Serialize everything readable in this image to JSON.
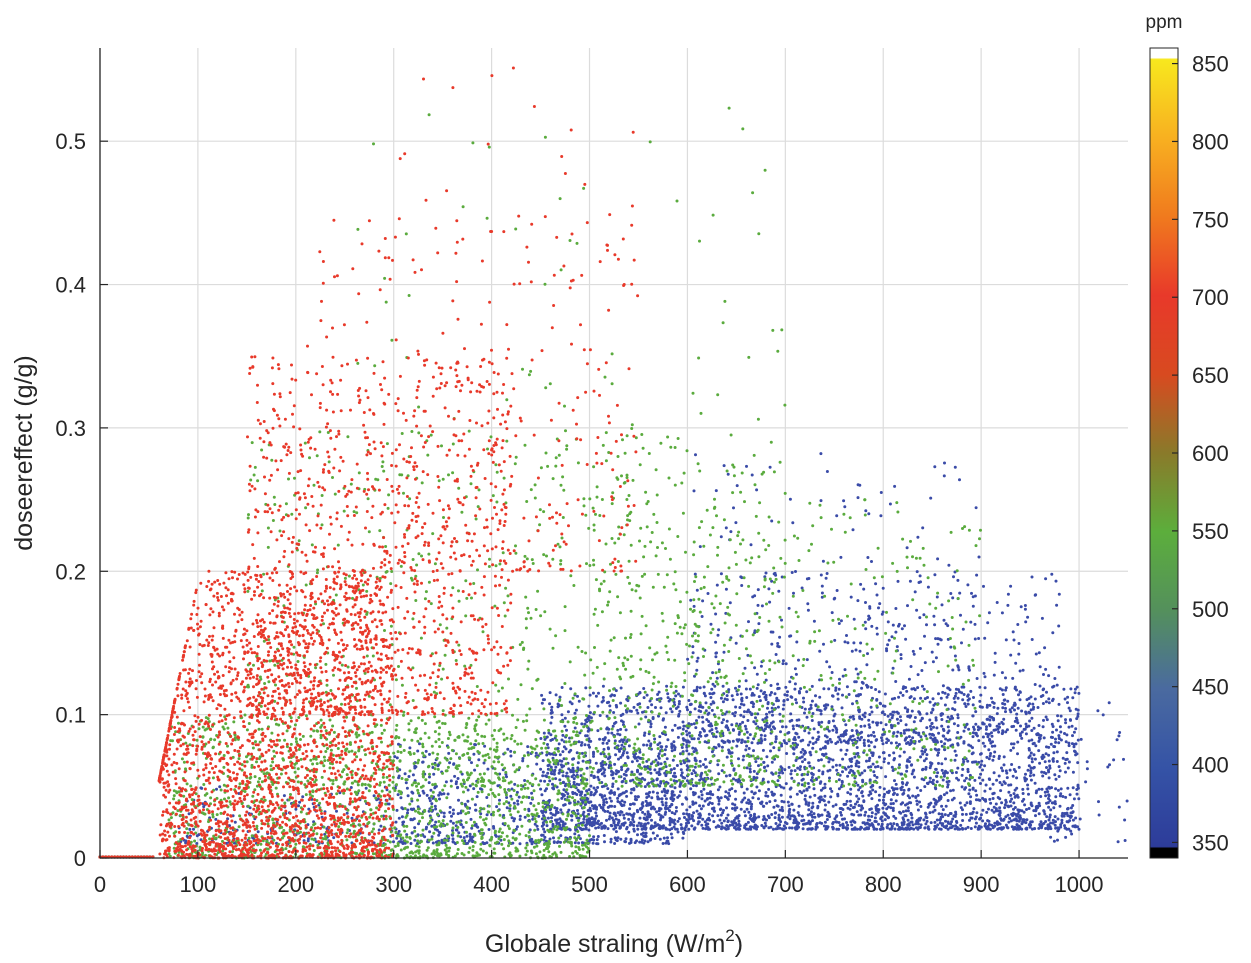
{
  "chart_data": {
    "type": "scatter",
    "xlabel": "Globale straling (W/m",
    "xlabel_sup": "2",
    "xlabel_end": ")",
    "ylabel": "doseereffect (g/g)",
    "xlim": [
      0,
      1050
    ],
    "ylim": [
      0,
      0.565
    ],
    "x_ticks": [
      0,
      100,
      200,
      300,
      400,
      500,
      600,
      700,
      800,
      900,
      1000
    ],
    "x_tick_labels": [
      "0",
      "100",
      "200",
      "300",
      "400",
      "500",
      "600",
      "700",
      "800",
      "900",
      "1000"
    ],
    "y_ticks": [
      0,
      0.1,
      0.2,
      0.3,
      0.4,
      0.5
    ],
    "y_tick_labels": [
      "0",
      "0.1",
      "0.2",
      "0.3",
      "0.4",
      "0.5"
    ],
    "grid": true,
    "colorbar": {
      "unit": "ppm",
      "min": 340,
      "max": 860,
      "ticks": [
        350,
        400,
        450,
        500,
        550,
        600,
        650,
        700,
        750,
        800,
        850
      ],
      "tick_labels": [
        "350",
        "400",
        "450",
        "500",
        "550",
        "600",
        "650",
        "700",
        "750",
        "800",
        "850"
      ],
      "colors": [
        "#000000",
        "#2d3c9a",
        "#3553a6",
        "#4a6aa0",
        "#54905c",
        "#5cae3c",
        "#8a7a2a",
        "#d84a20",
        "#e8392a",
        "#f07a1e",
        "#f8b020",
        "#f8e81e",
        "#ffffff"
      ]
    },
    "series": [
      {
        "ppm": 400,
        "color": "#3a4ba8",
        "clusters": [
          {
            "xmin": 450,
            "xmax": 1000,
            "ymin": 0.02,
            "ymax": 0.12,
            "count": 3200
          },
          {
            "xmin": 300,
            "xmax": 600,
            "ymin": 0.01,
            "ymax": 0.08,
            "count": 700
          },
          {
            "xmin": 600,
            "xmax": 980,
            "ymin": 0.08,
            "ymax": 0.2,
            "count": 500
          },
          {
            "xmin": 600,
            "xmax": 900,
            "ymin": 0.15,
            "ymax": 0.29,
            "count": 110
          },
          {
            "xmin": 80,
            "xmax": 350,
            "ymin": 0.01,
            "ymax": 0.05,
            "count": 220
          },
          {
            "xmin": 950,
            "xmax": 1050,
            "ymin": 0.01,
            "ymax": 0.11,
            "count": 40
          }
        ]
      },
      {
        "ppm": 500,
        "color": "#5aab3e",
        "clusters": [
          {
            "xmin": 70,
            "xmax": 500,
            "ymin": 0.0,
            "ymax": 0.1,
            "count": 1400
          },
          {
            "xmin": 150,
            "xmax": 700,
            "ymin": 0.05,
            "ymax": 0.3,
            "count": 900
          },
          {
            "xmin": 500,
            "xmax": 900,
            "ymin": 0.05,
            "ymax": 0.25,
            "count": 500
          },
          {
            "xmin": 250,
            "xmax": 700,
            "ymin": 0.25,
            "ymax": 0.53,
            "count": 90
          }
        ]
      },
      {
        "ppm": 650,
        "color": "#e8392a",
        "clusters": [
          {
            "xmin": 60,
            "xmax": 300,
            "ymin": 0.0,
            "ymax": 0.2,
            "count": 2300
          },
          {
            "xmin": 150,
            "xmax": 420,
            "ymin": 0.1,
            "ymax": 0.35,
            "count": 1000
          },
          {
            "xmin": 200,
            "xmax": 550,
            "ymin": 0.2,
            "ymax": 0.45,
            "count": 320
          },
          {
            "xmin": 300,
            "xmax": 550,
            "ymin": 0.4,
            "ymax": 0.56,
            "count": 30
          }
        ]
      }
    ]
  }
}
